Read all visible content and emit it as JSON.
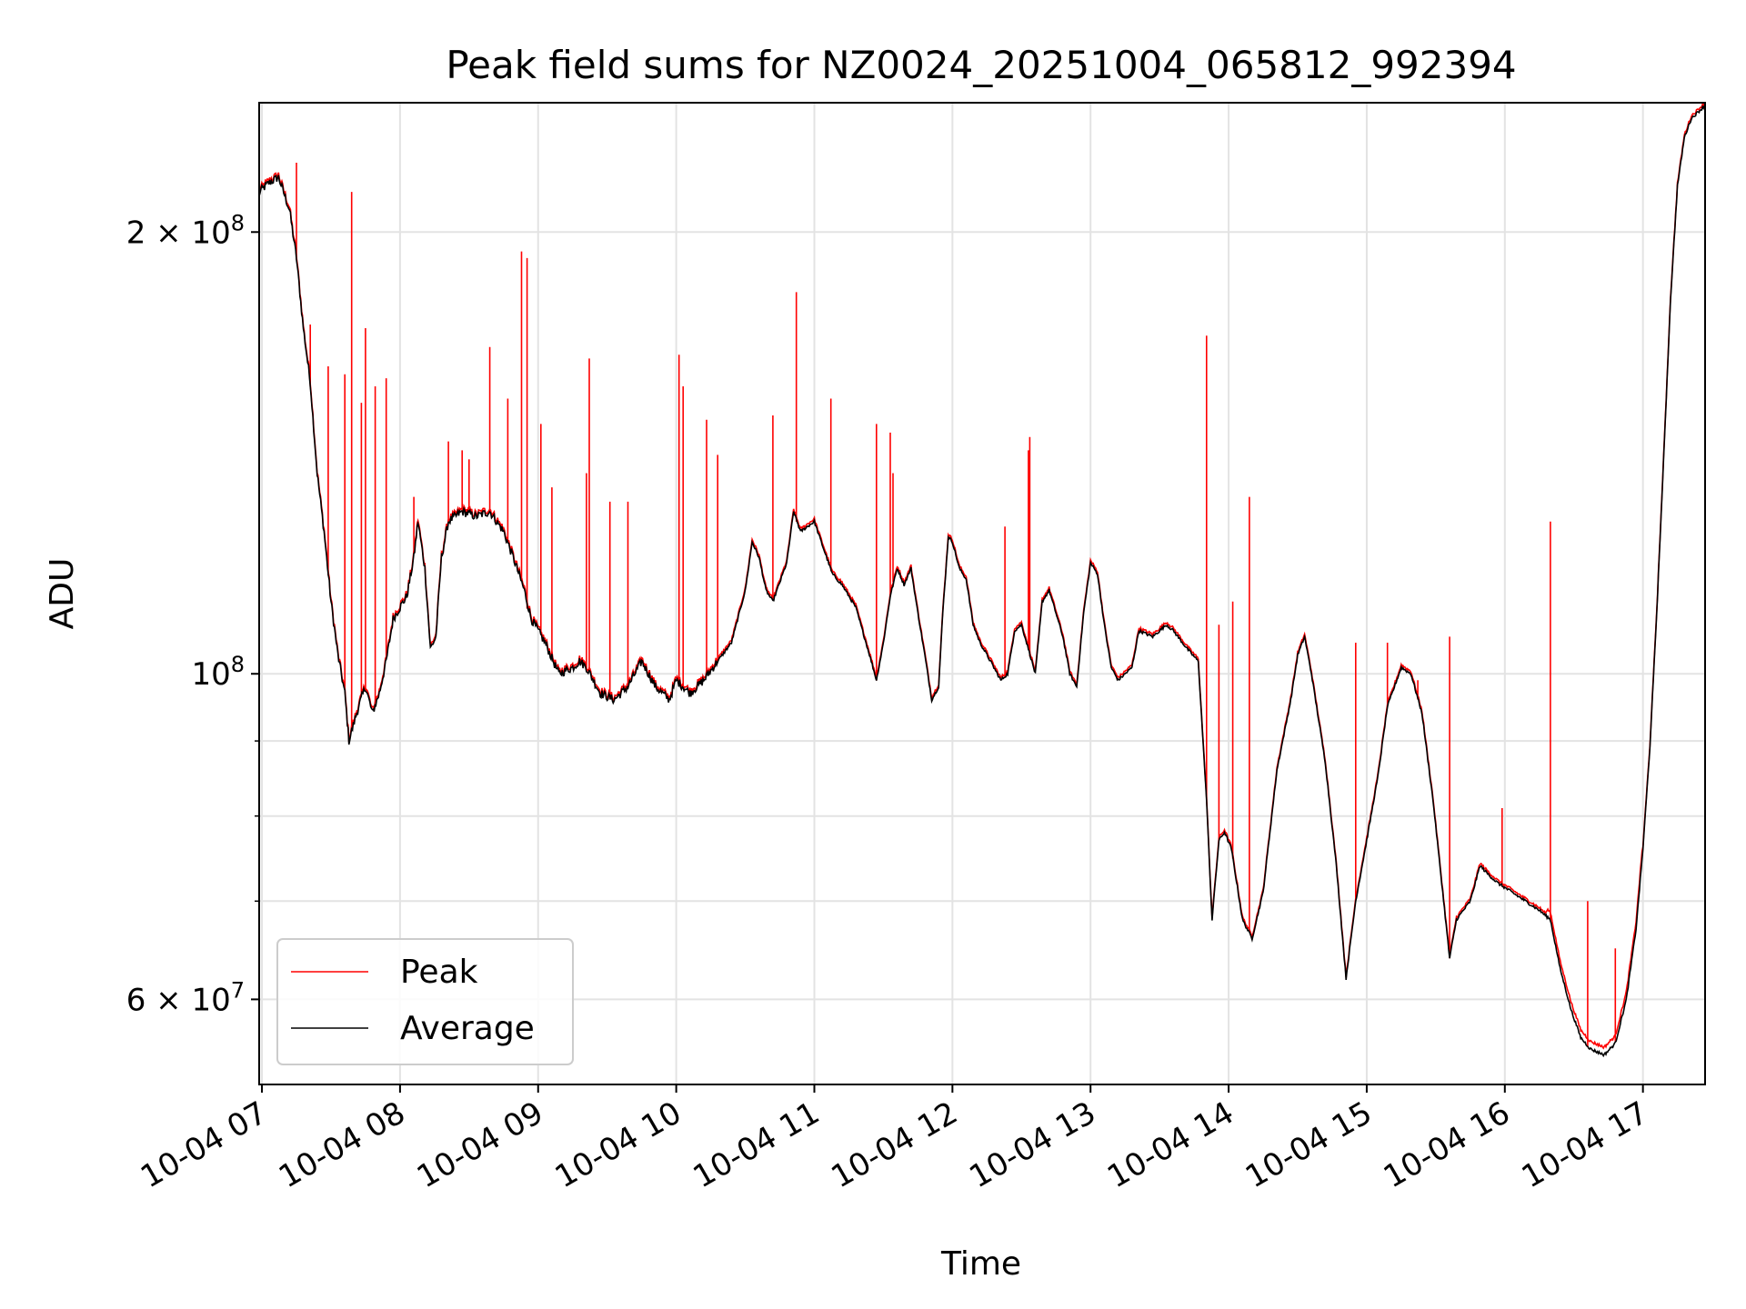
{
  "chart_data": {
    "type": "line",
    "title": "Peak field sums for NZ0024_20251004_065812_992394",
    "xlabel": "Time",
    "ylabel": "ADU",
    "yscale": "log",
    "ylim": [
      52500000,
      245000000
    ],
    "xlim": [
      6.98,
      17.45
    ],
    "grid": true,
    "legend_position": "lower-left",
    "x_ticks": [
      {
        "value": 7,
        "label": "10-04 07"
      },
      {
        "value": 8,
        "label": "10-04 08"
      },
      {
        "value": 9,
        "label": "10-04 09"
      },
      {
        "value": 10,
        "label": "10-04 10"
      },
      {
        "value": 11,
        "label": "10-04 11"
      },
      {
        "value": 12,
        "label": "10-04 12"
      },
      {
        "value": 13,
        "label": "10-04 13"
      },
      {
        "value": 14,
        "label": "10-04 14"
      },
      {
        "value": 15,
        "label": "10-04 15"
      },
      {
        "value": 16,
        "label": "10-04 16"
      },
      {
        "value": 17,
        "label": "10-04 17"
      }
    ],
    "y_major_ticks": [
      {
        "value": 60000000,
        "base": "6 × 10",
        "exp": "7"
      },
      {
        "value": 100000000,
        "base": "10",
        "exp": "8"
      },
      {
        "value": 200000000,
        "base": "2 × 10",
        "exp": "8"
      }
    ],
    "y_minor_gridlines": [
      70000000,
      80000000,
      90000000
    ],
    "series": [
      {
        "name": "Average",
        "color": "#000000",
        "points": [
          [
            6.98,
            213000000.0
          ],
          [
            7.05,
            216000000.0
          ],
          [
            7.12,
            218000000.0
          ],
          [
            7.2,
            207000000.0
          ],
          [
            7.25,
            192000000.0
          ],
          [
            7.3,
            172000000.0
          ],
          [
            7.35,
            158000000.0
          ],
          [
            7.4,
            137000000.0
          ],
          [
            7.45,
            125000000.0
          ],
          [
            7.5,
            112000000.0
          ],
          [
            7.55,
            103000000.0
          ],
          [
            7.6,
            97000000.0
          ],
          [
            7.63,
            90000000.0
          ],
          [
            7.7,
            95000000.0
          ],
          [
            7.75,
            98000000.0
          ],
          [
            7.8,
            94000000.0
          ],
          [
            7.85,
            97000000.0
          ],
          [
            7.9,
            102000000.0
          ],
          [
            7.95,
            109000000.0
          ],
          [
            8.0,
            111000000.0
          ],
          [
            8.05,
            113000000.0
          ],
          [
            8.1,
            120000000.0
          ],
          [
            8.13,
            127000000.0
          ],
          [
            8.18,
            118000000.0
          ],
          [
            8.22,
            104000000.0
          ],
          [
            8.26,
            106000000.0
          ],
          [
            8.3,
            120000000.0
          ],
          [
            8.35,
            127000000.0
          ],
          [
            8.45,
            129000000.0
          ],
          [
            8.55,
            128000000.0
          ],
          [
            8.65,
            129000000.0
          ],
          [
            8.75,
            125000000.0
          ],
          [
            8.82,
            120000000.0
          ],
          [
            8.9,
            114000000.0
          ],
          [
            8.95,
            109000000.0
          ],
          [
            9.05,
            105000000.0
          ],
          [
            9.15,
            100000000.0
          ],
          [
            9.25,
            101000000.0
          ],
          [
            9.3,
            102000000.0
          ],
          [
            9.35,
            101000000.0
          ],
          [
            9.45,
            97000000.0
          ],
          [
            9.55,
            96000000.0
          ],
          [
            9.65,
            98000000.0
          ],
          [
            9.75,
            102000000.0
          ],
          [
            9.85,
            98000000.0
          ],
          [
            9.95,
            96000000.0
          ],
          [
            10.0,
            99000000.0
          ],
          [
            10.1,
            97000000.0
          ],
          [
            10.2,
            99000000.0
          ],
          [
            10.3,
            102000000.0
          ],
          [
            10.4,
            105000000.0
          ],
          [
            10.5,
            114000000.0
          ],
          [
            10.55,
            123000000.0
          ],
          [
            10.6,
            120000000.0
          ],
          [
            10.65,
            114000000.0
          ],
          [
            10.7,
            112000000.0
          ],
          [
            10.8,
            119000000.0
          ],
          [
            10.85,
            129000000.0
          ],
          [
            10.9,
            125000000.0
          ],
          [
            11.0,
            127000000.0
          ],
          [
            11.05,
            123000000.0
          ],
          [
            11.13,
            117000000.0
          ],
          [
            11.2,
            115000000.0
          ],
          [
            11.3,
            111000000.0
          ],
          [
            11.4,
            103000000.0
          ],
          [
            11.45,
            99000000.0
          ],
          [
            11.5,
            105000000.0
          ],
          [
            11.55,
            113000000.0
          ],
          [
            11.6,
            118000000.0
          ],
          [
            11.65,
            115000000.0
          ],
          [
            11.7,
            118000000.0
          ],
          [
            11.75,
            110000000.0
          ],
          [
            11.8,
            103000000.0
          ],
          [
            11.85,
            96000000.0
          ],
          [
            11.9,
            98000000.0
          ],
          [
            11.93,
            110000000.0
          ],
          [
            11.97,
            124000000.0
          ],
          [
            12.0,
            123000000.0
          ],
          [
            12.05,
            118000000.0
          ],
          [
            12.1,
            116000000.0
          ],
          [
            12.15,
            108000000.0
          ],
          [
            12.2,
            105000000.0
          ],
          [
            12.25,
            103000000.0
          ],
          [
            12.3,
            101000000.0
          ],
          [
            12.35,
            99000000.0
          ],
          [
            12.4,
            100000000.0
          ],
          [
            12.45,
            107000000.0
          ],
          [
            12.5,
            108000000.0
          ],
          [
            12.55,
            104000000.0
          ],
          [
            12.6,
            100000000.0
          ],
          [
            12.65,
            112000000.0
          ],
          [
            12.7,
            114000000.0
          ],
          [
            12.75,
            110000000.0
          ],
          [
            12.8,
            106000000.0
          ],
          [
            12.85,
            100000000.0
          ],
          [
            12.9,
            98000000.0
          ],
          [
            12.95,
            110000000.0
          ],
          [
            13.0,
            119000000.0
          ],
          [
            13.05,
            117000000.0
          ],
          [
            13.1,
            108000000.0
          ],
          [
            13.15,
            101000000.0
          ],
          [
            13.2,
            99000000.0
          ],
          [
            13.3,
            101000000.0
          ],
          [
            13.35,
            107000000.0
          ],
          [
            13.45,
            106000000.0
          ],
          [
            13.55,
            108000000.0
          ],
          [
            13.6,
            107000000.0
          ],
          [
            13.7,
            104000000.0
          ],
          [
            13.78,
            102000000.0
          ],
          [
            13.84,
            82000000.0
          ],
          [
            13.88,
            68000000.0
          ],
          [
            13.93,
            77000000.0
          ],
          [
            13.97,
            78000000.0
          ],
          [
            14.02,
            76000000.0
          ],
          [
            14.1,
            68000000.0
          ],
          [
            14.17,
            66000000.0
          ],
          [
            14.25,
            71000000.0
          ],
          [
            14.35,
            86000000.0
          ],
          [
            14.45,
            96000000.0
          ],
          [
            14.5,
            103000000.0
          ],
          [
            14.55,
            106000000.0
          ],
          [
            14.6,
            100000000.0
          ],
          [
            14.7,
            87000000.0
          ],
          [
            14.78,
            74000000.0
          ],
          [
            14.85,
            62000000.0
          ],
          [
            14.92,
            70000000.0
          ],
          [
            15.0,
            77000000.0
          ],
          [
            15.08,
            85000000.0
          ],
          [
            15.15,
            95000000.0
          ],
          [
            15.25,
            101000000.0
          ],
          [
            15.32,
            100000000.0
          ],
          [
            15.4,
            94000000.0
          ],
          [
            15.48,
            82000000.0
          ],
          [
            15.55,
            71000000.0
          ],
          [
            15.6,
            64000000.0
          ],
          [
            15.65,
            68000000.0
          ],
          [
            15.7,
            69000000.0
          ],
          [
            15.75,
            70000000.0
          ],
          [
            15.82,
            74000000.0
          ],
          [
            15.88,
            73000000.0
          ],
          [
            15.95,
            72000000.0
          ],
          [
            16.05,
            71000000.0
          ],
          [
            16.15,
            70000000.0
          ],
          [
            16.25,
            69000000.0
          ],
          [
            16.33,
            68000000.0
          ],
          [
            16.4,
            63000000.0
          ],
          [
            16.48,
            59000000.0
          ],
          [
            16.55,
            56500000.0
          ],
          [
            16.62,
            55500000.0
          ],
          [
            16.72,
            55000000.0
          ],
          [
            16.8,
            56000000.0
          ],
          [
            16.88,
            60000000.0
          ],
          [
            16.95,
            67000000.0
          ],
          [
            17.0,
            76000000.0
          ],
          [
            17.05,
            89000000.0
          ],
          [
            17.1,
            110000000.0
          ],
          [
            17.15,
            140000000.0
          ],
          [
            17.2,
            180000000.0
          ],
          [
            17.25,
            215000000.0
          ],
          [
            17.3,
            232000000.0
          ],
          [
            17.35,
            239000000.0
          ],
          [
            17.45,
            244000000.0
          ]
        ]
      },
      {
        "name": "Peak",
        "color": "#ff0000",
        "spikes": [
          [
            7.25,
            223000000.0
          ],
          [
            7.35,
            173000000.0
          ],
          [
            7.48,
            162000000.0
          ],
          [
            7.6,
            160000000.0
          ],
          [
            7.65,
            213000000.0
          ],
          [
            7.72,
            153000000.0
          ],
          [
            7.75,
            172000000.0
          ],
          [
            7.82,
            157000000.0
          ],
          [
            7.9,
            159000000.0
          ],
          [
            8.1,
            132000000.0
          ],
          [
            8.35,
            144000000.0
          ],
          [
            8.45,
            142000000.0
          ],
          [
            8.5,
            140000000.0
          ],
          [
            8.65,
            167000000.0
          ],
          [
            8.78,
            154000000.0
          ],
          [
            8.88,
            194000000.0
          ],
          [
            8.92,
            192000000.0
          ],
          [
            9.02,
            148000000.0
          ],
          [
            9.1,
            134000000.0
          ],
          [
            9.35,
            137000000.0
          ],
          [
            9.37,
            164000000.0
          ],
          [
            9.52,
            131000000.0
          ],
          [
            9.65,
            131000000.0
          ],
          [
            10.02,
            165000000.0
          ],
          [
            10.05,
            157000000.0
          ],
          [
            10.22,
            149000000.0
          ],
          [
            10.3,
            141000000.0
          ],
          [
            10.7,
            150000000.0
          ],
          [
            10.87,
            182000000.0
          ],
          [
            11.12,
            154000000.0
          ],
          [
            11.45,
            148000000.0
          ],
          [
            11.55,
            146000000.0
          ],
          [
            11.57,
            137000000.0
          ],
          [
            12.38,
            126000000.0
          ],
          [
            12.55,
            142000000.0
          ],
          [
            12.56,
            145000000.0
          ],
          [
            13.84,
            170000000.0
          ],
          [
            13.93,
            108000000.0
          ],
          [
            14.03,
            112000000.0
          ],
          [
            14.15,
            132000000.0
          ],
          [
            14.92,
            105000000.0
          ],
          [
            15.15,
            105000000.0
          ],
          [
            15.37,
            99000000.0
          ],
          [
            15.6,
            106000000.0
          ],
          [
            15.98,
            81000000.0
          ],
          [
            16.33,
            127000000.0
          ],
          [
            16.6,
            70000000.0
          ],
          [
            16.8,
            65000000.0
          ]
        ]
      }
    ],
    "legend": [
      {
        "label": "Peak",
        "color": "#ff0000"
      },
      {
        "label": "Average",
        "color": "#000000"
      }
    ]
  }
}
